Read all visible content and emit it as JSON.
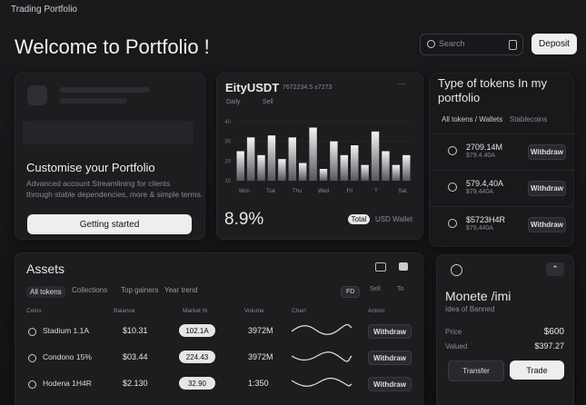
{
  "header": {
    "app_name": "Trading Portfolio",
    "search_placeholder": "Search",
    "deposit_button": "Deposit",
    "welcome": "Welcome to Portfolio !"
  },
  "customise_card": {
    "title": "Customise your Portfolio",
    "description_lines": [
      "Advanced account Streamlining for clients",
      "through stable dependencies, more & simple terms."
    ],
    "button": "Getting started"
  },
  "chart_card": {
    "title": "EityUSDT",
    "subtitle": "7672234.5 ±7273",
    "legend": [
      "Daily",
      "Sell"
    ],
    "chart": {
      "ylim": [
        10,
        40
      ],
      "yticks": [
        40,
        30,
        20,
        10
      ],
      "values": [
        25,
        32,
        23,
        33,
        21,
        32,
        19,
        37,
        16,
        30,
        23,
        28,
        18,
        35,
        25,
        18,
        23
      ],
      "x_labels": [
        "Mon",
        "Tue",
        "Thu",
        "Wed",
        "Fri",
        "T",
        "Sat"
      ]
    },
    "percent": "8.9%",
    "total_pill": "Total",
    "wallet": "USD Wallet"
  },
  "tokens_card": {
    "title_lines": [
      "Type of tokens In my",
      "portfolio"
    ],
    "tabs": [
      "All tokens / Wallets",
      "Stablecoins"
    ],
    "rows": [
      {
        "value": "2709.14M",
        "sub": "$79.4.40A",
        "button": "Withdraw"
      },
      {
        "value": "579.4,40A",
        "sub": "$79,440A",
        "button": "Withdraw"
      },
      {
        "value": "$5723H4R",
        "sub": "$79,440A",
        "button": "Withdraw"
      }
    ]
  },
  "assets_card": {
    "title": "Assets",
    "tabs": [
      "All tokens",
      "Collections",
      "Top gainers",
      "Year trend"
    ],
    "filters": [
      "FD",
      "Sell",
      "To"
    ],
    "columns": [
      "Coins",
      "Balance",
      "Market %",
      "Volume",
      "Chart",
      "Action"
    ],
    "rows": [
      {
        "coin": "Stadium 1.1A",
        "balance": "$10.31",
        "market": "102.1A",
        "volume": "3972M",
        "action": "Withdraw"
      },
      {
        "coin": "Condono 15%",
        "balance": "$03.44",
        "market": "224.43",
        "volume": "3972M",
        "action": "Withdraw"
      },
      {
        "coin": "Hodena 1H4R",
        "balance": "$2.130",
        "market": "32.90",
        "volume": "1:350",
        "action": "Withdraw"
      }
    ]
  },
  "coin_card": {
    "name": "Monete /imi",
    "sub": "Idea of Banned",
    "price_label": "Price",
    "price": "$600",
    "value_label": "Valued",
    "value": "$397.27",
    "transfer_button": "Transfer",
    "trade_button": "Trade"
  }
}
